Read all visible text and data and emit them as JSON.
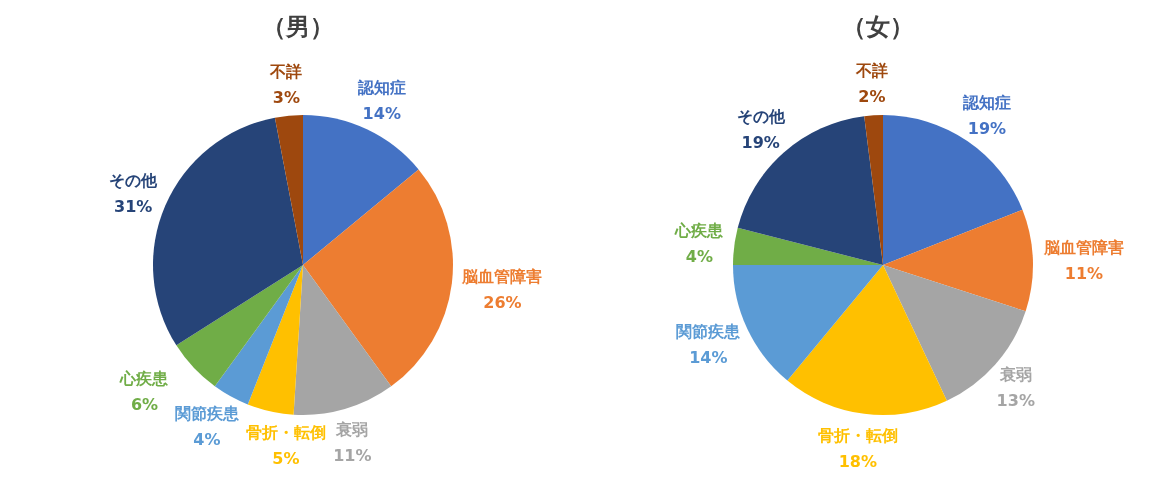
{
  "chart_data": [
    {
      "type": "pie",
      "title": "（男）",
      "categories": [
        "認知症",
        "脳血管障害",
        "衰弱",
        "骨折・転倒",
        "関節疾患",
        "心疾患",
        "その他",
        "不詳"
      ],
      "values": [
        14,
        26,
        11,
        5,
        4,
        6,
        31,
        3
      ],
      "value_labels": [
        "14%",
        "26%",
        "11%",
        "5%",
        "4%",
        "6%",
        "31%",
        "3%"
      ],
      "colors": [
        "#4472c4",
        "#ed7d31",
        "#a5a5a5",
        "#ffc000",
        "#5b9bd5",
        "#70ad47",
        "#264478",
        "#9e480e"
      ]
    },
    {
      "type": "pie",
      "title": "（女）",
      "categories": [
        "認知症",
        "脳血管障害",
        "衰弱",
        "骨折・転倒",
        "関節疾患",
        "心疾患",
        "その他",
        "不詳"
      ],
      "values": [
        19,
        11,
        13,
        18,
        14,
        4,
        19,
        2
      ],
      "value_labels": [
        "19%",
        "11%",
        "13%",
        "18%",
        "14%",
        "4%",
        "19%",
        "2%"
      ],
      "colors": [
        "#4472c4",
        "#ed7d31",
        "#a5a5a5",
        "#ffc000",
        "#5b9bd5",
        "#70ad47",
        "#264478",
        "#9e480e"
      ]
    }
  ]
}
